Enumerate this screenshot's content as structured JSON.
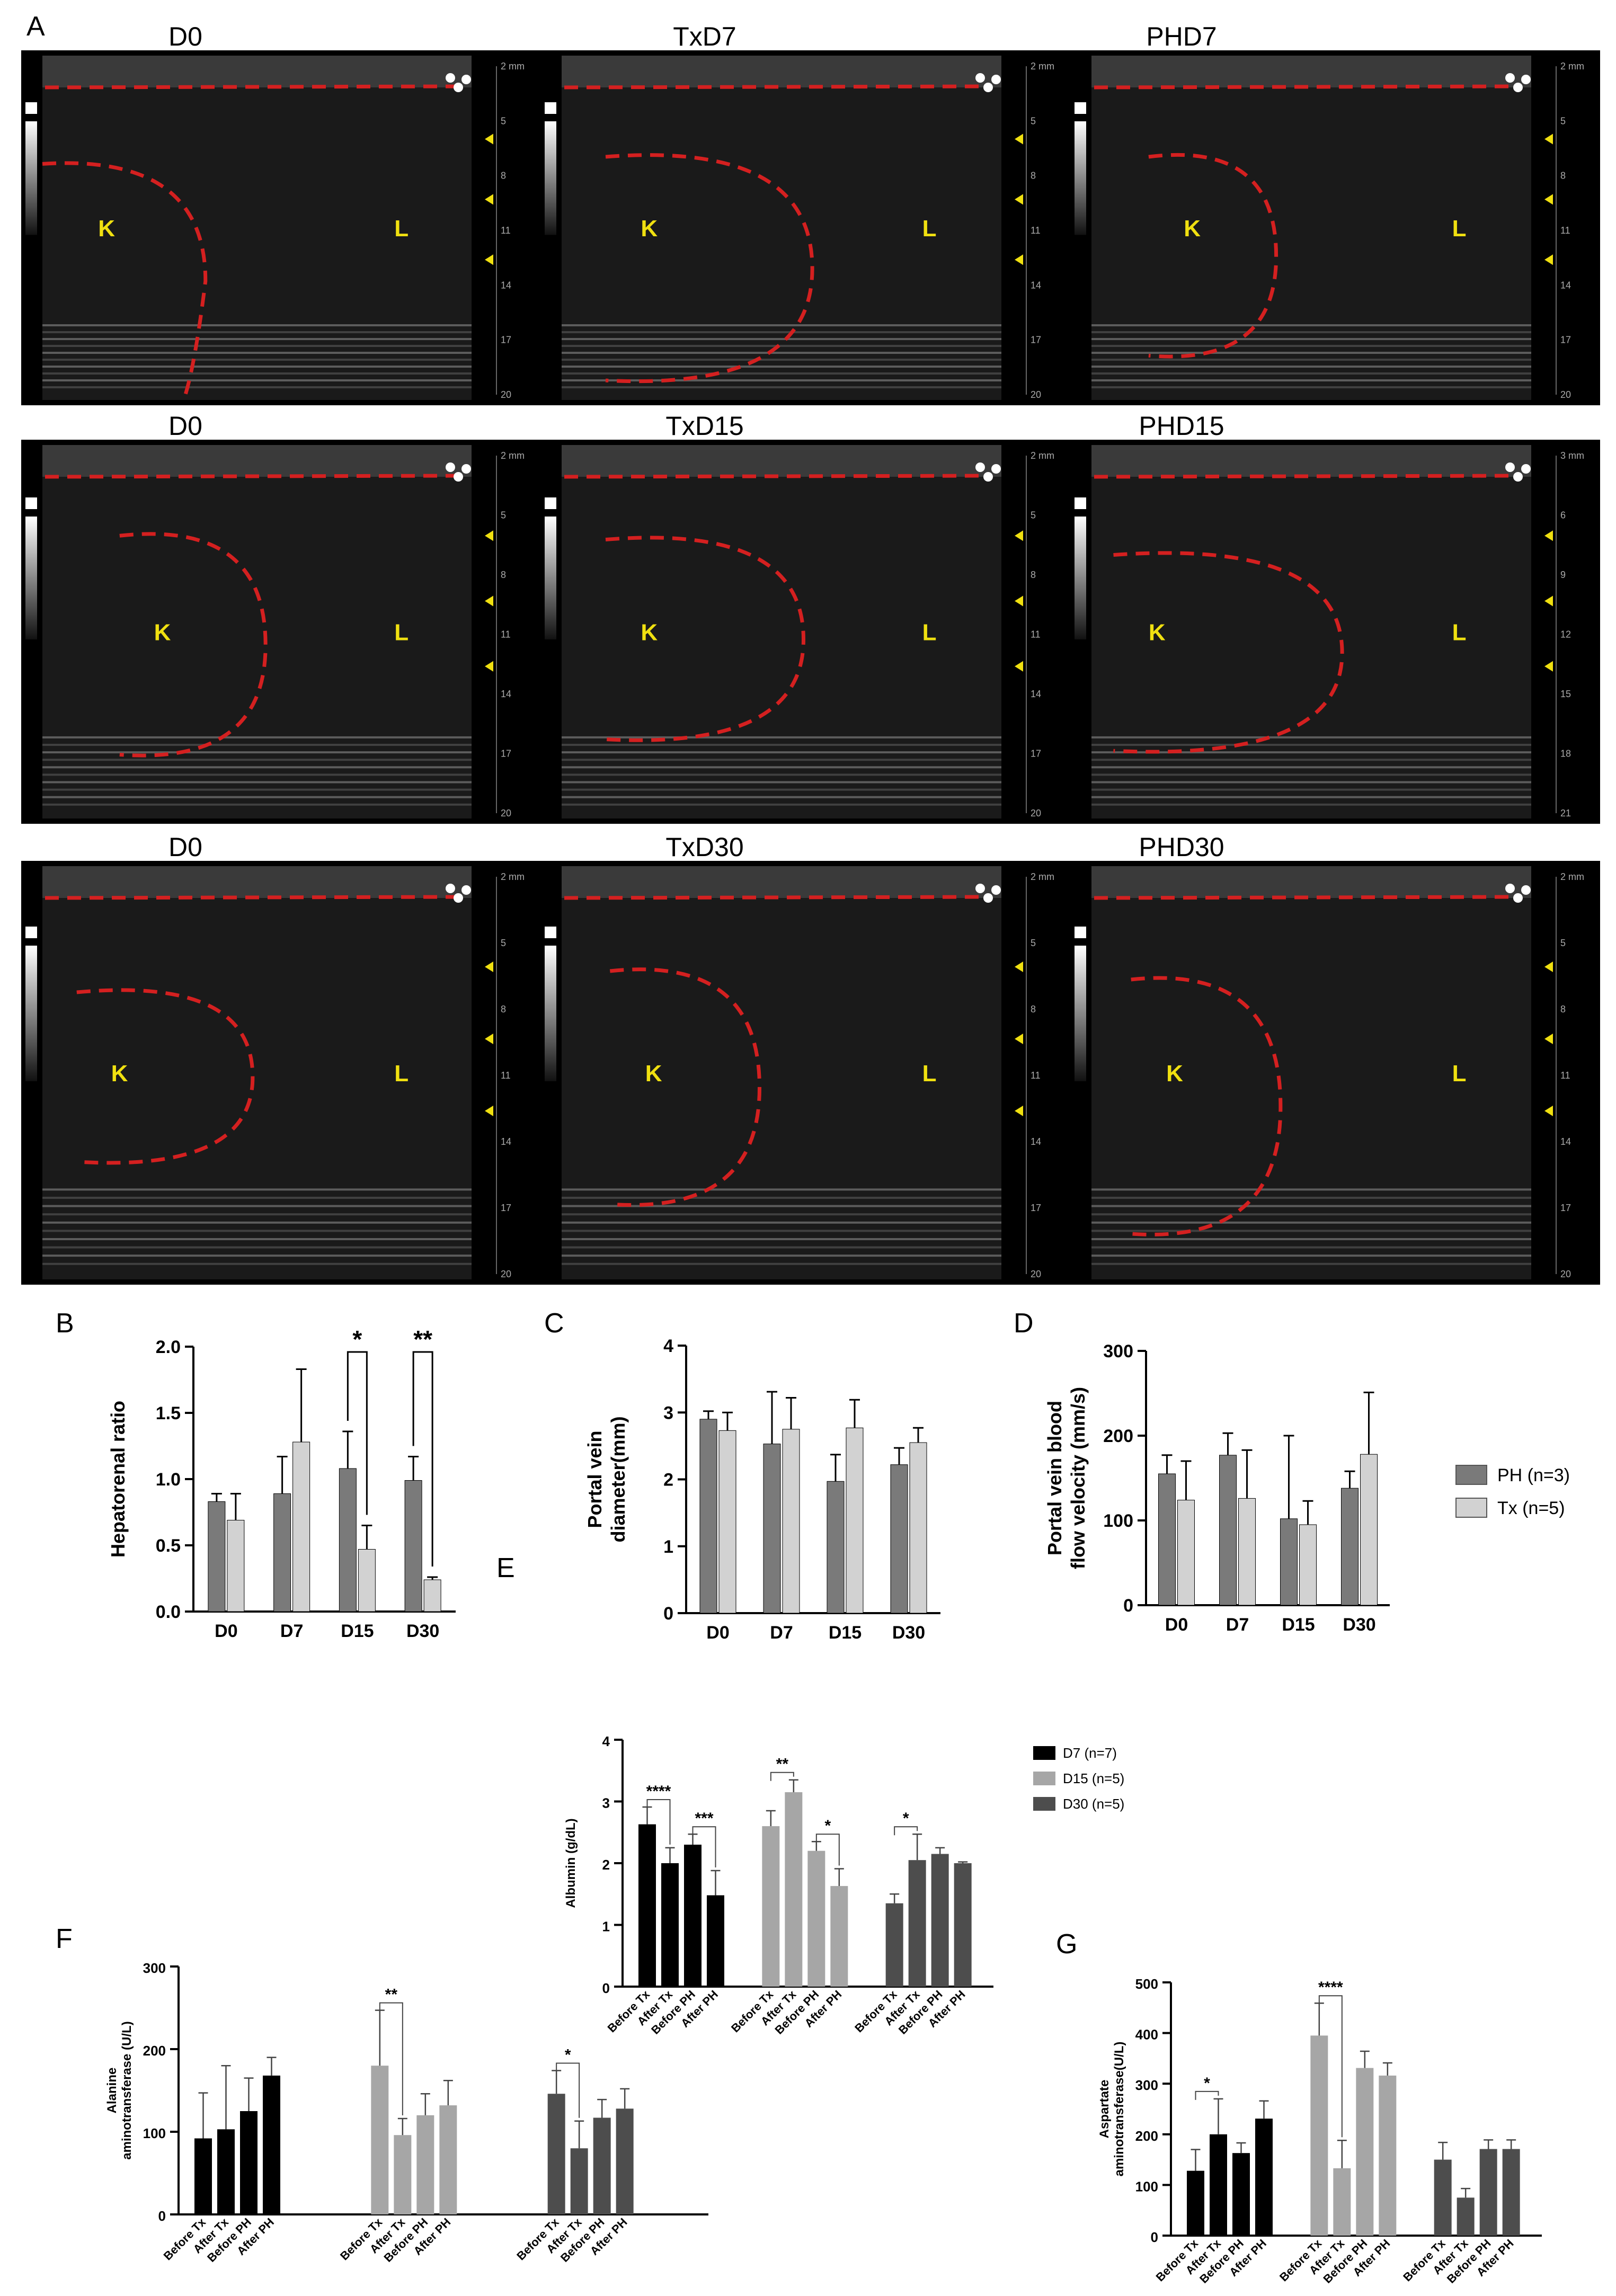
{
  "panel_A": {
    "letter": "A",
    "rows": [
      {
        "titles": [
          "D0",
          "TxD7",
          "PHD7"
        ]
      },
      {
        "titles": [
          "D0",
          "TxD15",
          "PHD15"
        ]
      },
      {
        "titles": [
          "D0",
          "TxD30",
          "PHD30"
        ]
      }
    ],
    "kidney_label": "K",
    "liver_label": "L",
    "depth_unit": "2 mm",
    "depth_ticks": [
      "5",
      "8",
      "11",
      "14",
      "17",
      "20"
    ],
    "depth_ticks_phd15": [
      "3 mm",
      "6",
      "9",
      "12",
      "15",
      "18",
      "21"
    ]
  },
  "panel_letters": {
    "B": "B",
    "C": "C",
    "D": "D",
    "E": "E",
    "F": "F",
    "G": "G"
  },
  "colors": {
    "ph": "#7a7a7a",
    "tx": "#d2d2d2",
    "d7": "#000000",
    "d15": "#a6a6a6",
    "d30": "#4d4d4d",
    "outline": "#d42020",
    "marker": "#f0e010"
  },
  "legend_ph_tx": [
    "PH (n=3)",
    "Tx (n=5)"
  ],
  "legend_days": [
    "D7 (n=7)",
    "D15 (n=5)",
    "D30 (n=5)"
  ],
  "chart_data": [
    {
      "id": "B",
      "type": "bar",
      "ylabel": "Hepatorenal ratio",
      "ylim": [
        0,
        2.0
      ],
      "yticks": [
        "0.0",
        "0.5",
        "1.0",
        "1.5",
        "2.0"
      ],
      "categories": [
        "D0",
        "D7",
        "D15",
        "D30"
      ],
      "series": [
        {
          "name": "PH (n=3)",
          "values": [
            0.83,
            0.89,
            1.08,
            0.99
          ],
          "errors": [
            0.06,
            0.28,
            0.28,
            0.18
          ]
        },
        {
          "name": "Tx (n=5)",
          "values": [
            0.69,
            1.28,
            0.47,
            0.24
          ],
          "errors": [
            0.2,
            0.55,
            0.18,
            0.02
          ]
        }
      ],
      "significance": [
        {
          "category": "D15",
          "label": "*"
        },
        {
          "category": "D30",
          "label": "**"
        }
      ]
    },
    {
      "id": "C",
      "type": "bar",
      "ylabel": "Portal vein diameter(mm)",
      "ylim": [
        0,
        4
      ],
      "yticks": [
        "0",
        "1",
        "2",
        "3",
        "4"
      ],
      "categories": [
        "D0",
        "D7",
        "D15",
        "D30"
      ],
      "series": [
        {
          "name": "PH (n=3)",
          "values": [
            2.9,
            2.53,
            1.97,
            2.22
          ],
          "errors": [
            0.12,
            0.78,
            0.4,
            0.25
          ]
        },
        {
          "name": "Tx (n=5)",
          "values": [
            2.73,
            2.75,
            2.77,
            2.55
          ],
          "errors": [
            0.27,
            0.47,
            0.42,
            0.22
          ]
        }
      ]
    },
    {
      "id": "D",
      "type": "bar",
      "ylabel": "Portal vein blood flow velocity (mm/s)",
      "ylim": [
        0,
        300
      ],
      "yticks": [
        "0",
        "100",
        "200",
        "300"
      ],
      "categories": [
        "D0",
        "D7",
        "D15",
        "D30"
      ],
      "series": [
        {
          "name": "PH (n=3)",
          "values": [
            155,
            177,
            102,
            138
          ],
          "errors": [
            22,
            26,
            98,
            20
          ]
        },
        {
          "name": "Tx (n=5)",
          "values": [
            124,
            126,
            95,
            178
          ],
          "errors": [
            46,
            57,
            28,
            73
          ]
        }
      ]
    },
    {
      "id": "E",
      "type": "bar",
      "ylabel": "Albumin (g/dL)",
      "ylim": [
        0,
        4
      ],
      "yticks": [
        "0",
        "1",
        "2",
        "3",
        "4"
      ],
      "categories": [
        "Before Tx",
        "After Tx",
        "Before PH",
        "After PH"
      ],
      "series": [
        {
          "name": "D7 (n=7)",
          "values": [
            2.63,
            2.0,
            2.3,
            1.48
          ],
          "errors": [
            0.28,
            0.25,
            0.17,
            0.4
          ]
        },
        {
          "name": "D15 (n=5)",
          "values": [
            2.6,
            3.15,
            2.2,
            1.63
          ],
          "errors": [
            0.25,
            0.2,
            0.15,
            0.28
          ]
        },
        {
          "name": "D30 (n=5)",
          "values": [
            1.35,
            2.05,
            2.15,
            2.0
          ],
          "errors": [
            0.15,
            0.42,
            0.1,
            0.02
          ]
        }
      ],
      "significance": [
        {
          "group": 0,
          "pair": [
            0,
            1
          ],
          "label": "****"
        },
        {
          "group": 0,
          "pair": [
            2,
            3
          ],
          "label": "***"
        },
        {
          "group": 1,
          "pair": [
            0,
            1
          ],
          "label": "**"
        },
        {
          "group": 1,
          "pair": [
            2,
            3
          ],
          "label": "*"
        },
        {
          "group": 2,
          "pair": [
            0,
            1
          ],
          "label": "*"
        }
      ]
    },
    {
      "id": "F",
      "type": "bar",
      "ylabel": "Alanine aminotransferase (U/L)",
      "ylim": [
        0,
        300
      ],
      "yticks": [
        "0",
        "100",
        "200",
        "300"
      ],
      "categories": [
        "Before Tx",
        "After Tx",
        "Before PH",
        "After PH"
      ],
      "series": [
        {
          "name": "D7 (n=7)",
          "values": [
            92,
            103,
            125,
            168
          ],
          "errors": [
            55,
            77,
            40,
            22
          ]
        },
        {
          "name": "D15 (n=5)",
          "values": [
            180,
            96,
            120,
            132
          ],
          "errors": [
            67,
            20,
            26,
            30
          ]
        },
        {
          "name": "D30 (n=5)",
          "values": [
            146,
            80,
            117,
            128
          ],
          "errors": [
            28,
            33,
            22,
            24
          ]
        }
      ],
      "significance": [
        {
          "group": 1,
          "pair": [
            0,
            1
          ],
          "label": "**"
        },
        {
          "group": 2,
          "pair": [
            0,
            1
          ],
          "label": "*"
        }
      ]
    },
    {
      "id": "G",
      "type": "bar",
      "ylabel": "Aspartate aminotransferase(U/L)",
      "ylim": [
        0,
        500
      ],
      "yticks": [
        "0",
        "100",
        "200",
        "300",
        "400",
        "500"
      ],
      "categories": [
        "Before Tx",
        "After Tx",
        "Before PH",
        "After PH"
      ],
      "series": [
        {
          "name": "D7 (n=7)",
          "values": [
            128,
            200,
            163,
            231
          ],
          "errors": [
            42,
            70,
            20,
            35
          ]
        },
        {
          "name": "D15 (n=5)",
          "values": [
            395,
            133,
            331,
            316
          ],
          "errors": [
            64,
            55,
            33,
            25
          ]
        },
        {
          "name": "D30 (n=5)",
          "values": [
            150,
            75,
            171,
            171
          ],
          "errors": [
            34,
            18,
            18,
            18
          ]
        }
      ],
      "significance": [
        {
          "group": 0,
          "pair": [
            0,
            1
          ],
          "label": "*"
        },
        {
          "group": 1,
          "pair": [
            0,
            1
          ],
          "label": "****"
        }
      ]
    }
  ]
}
